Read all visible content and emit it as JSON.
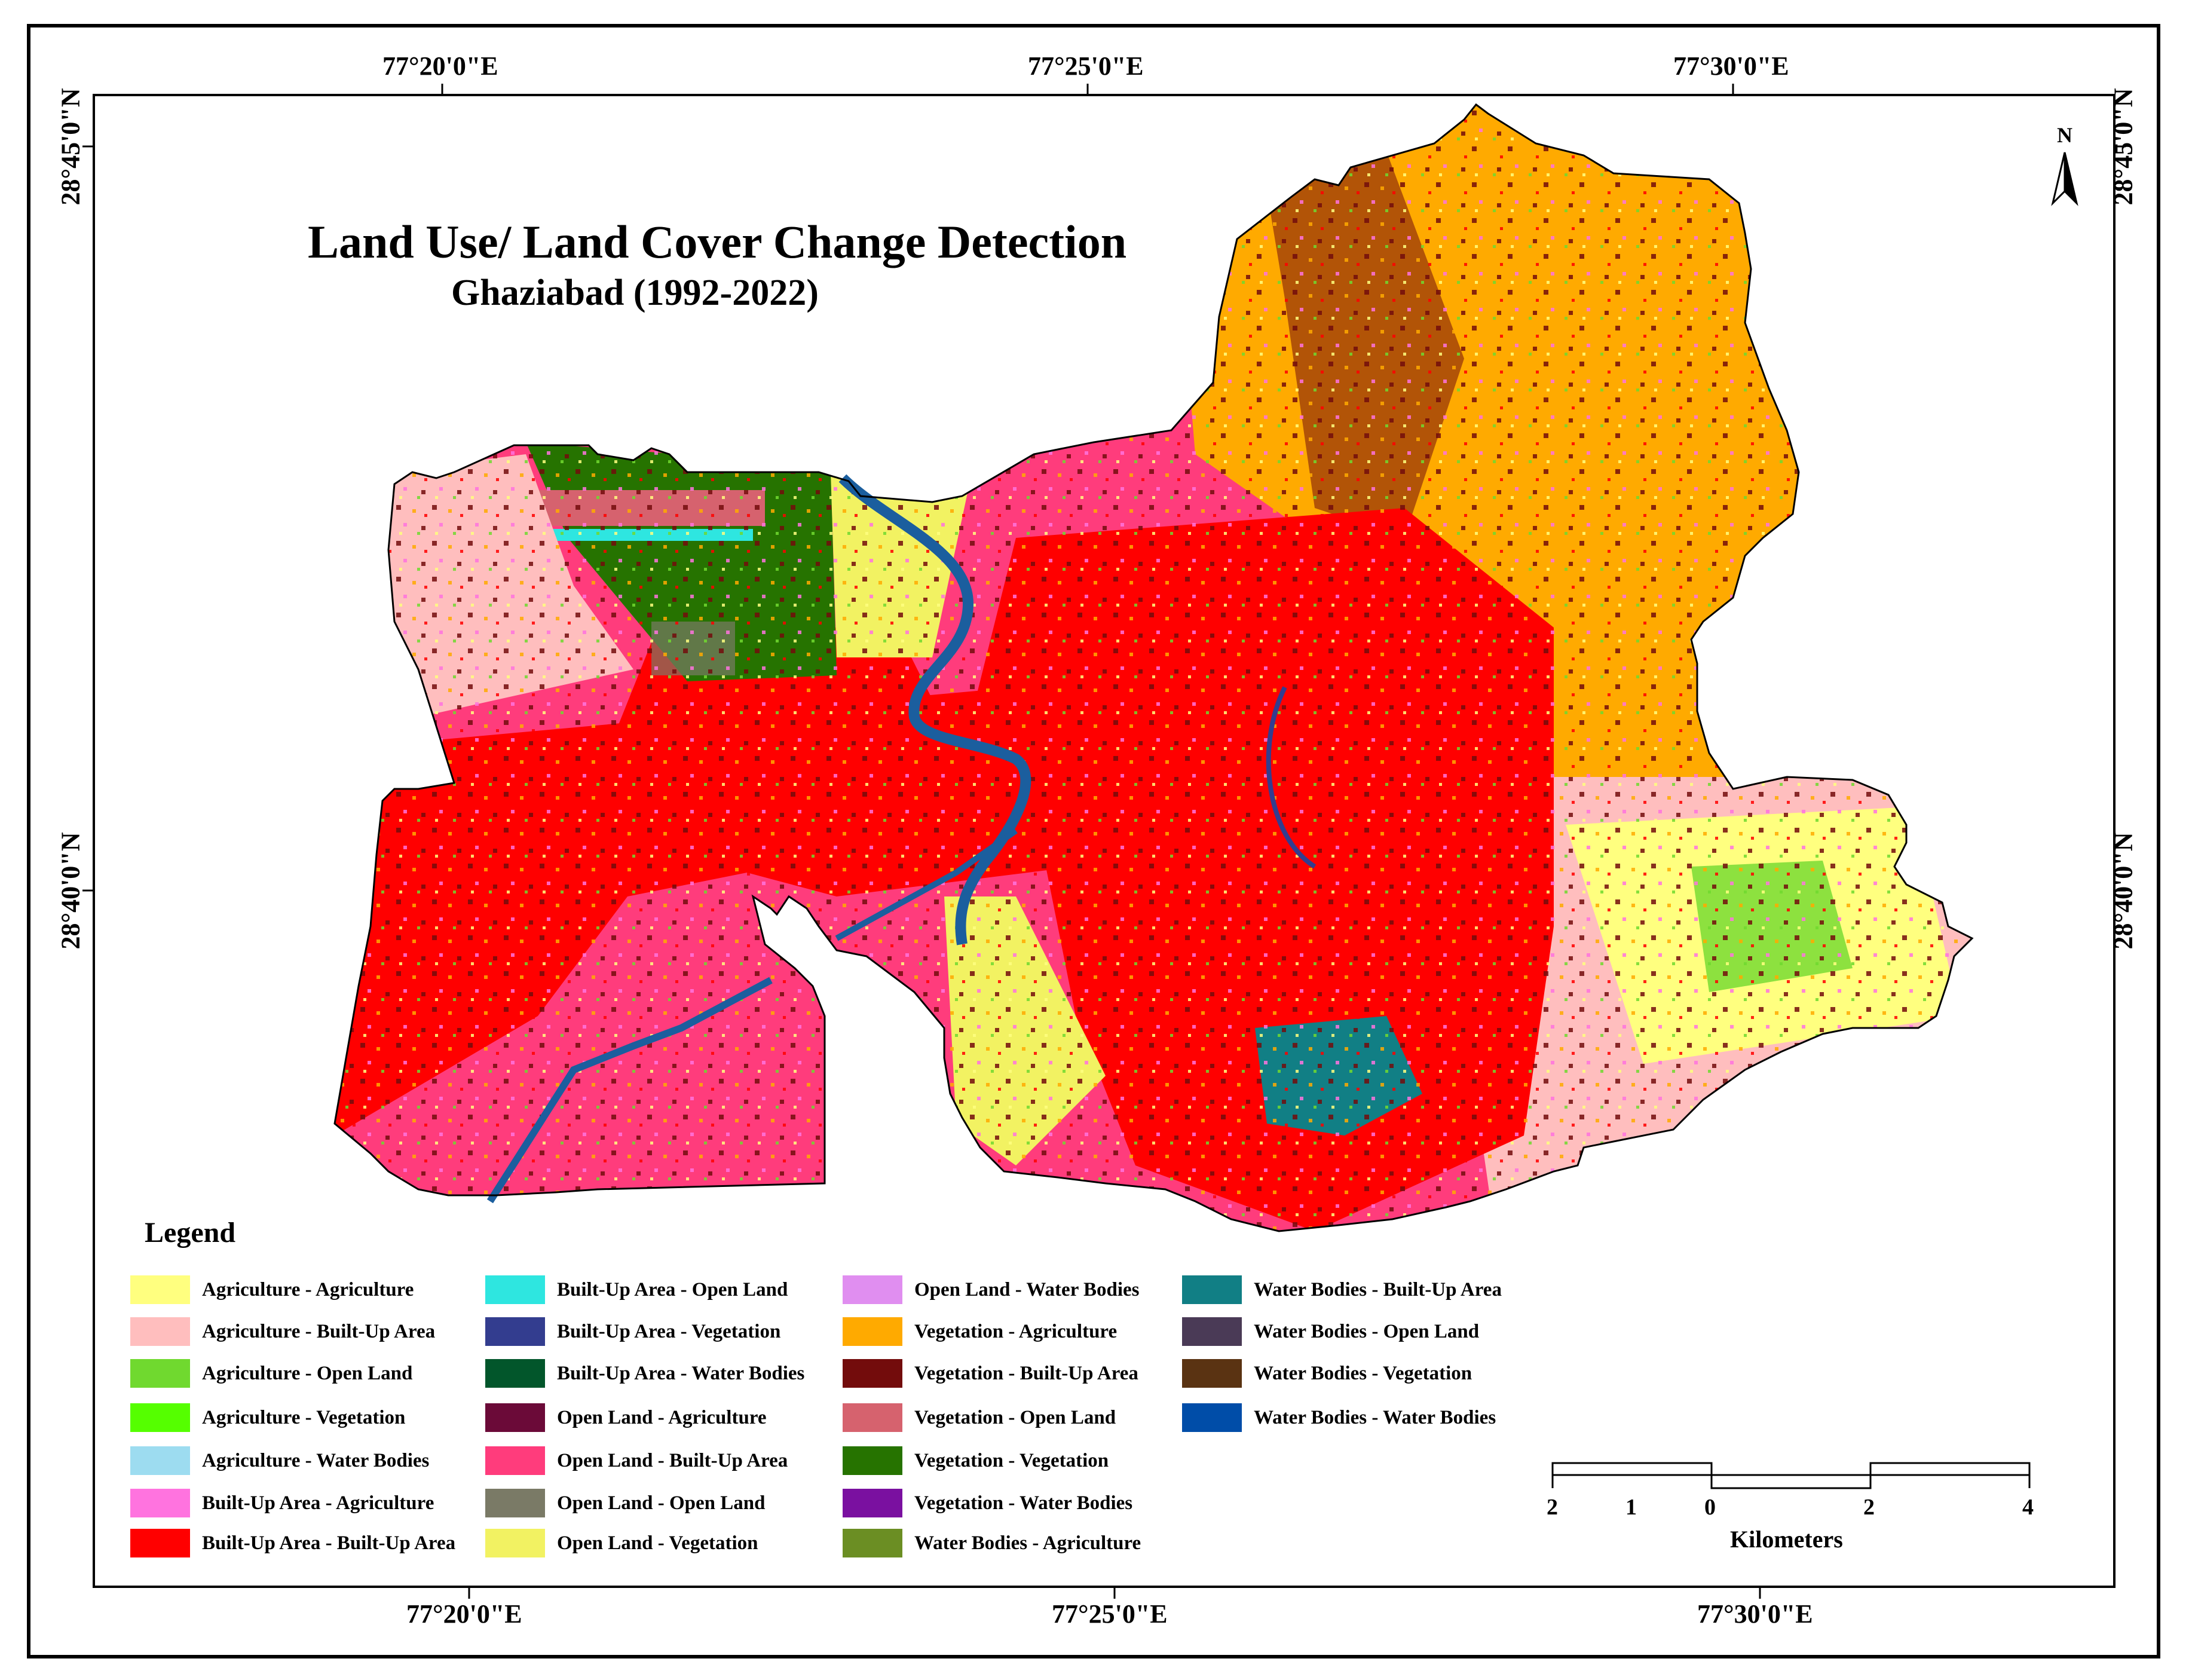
{
  "title": "Land Use/ Land Cover Change Detection",
  "subtitle": "Ghaziabad (1992-2022)",
  "north_label": "N",
  "coordinates": {
    "top": [
      "77°20'0\"E",
      "77°25'0\"E",
      "77°30'0\"E"
    ],
    "bottom": [
      "77°20'0\"E",
      "77°25'0\"E",
      "77°30'0\"E"
    ],
    "left": [
      "28°45'0\"N",
      "28°40'0\"N"
    ],
    "right": [
      "28°45'0\"N",
      "28°40'0\"N"
    ]
  },
  "legend": {
    "heading": "Legend",
    "items": [
      {
        "label": "Agriculture - Agriculture",
        "color": "#ffff7f"
      },
      {
        "label": "Agriculture - Built-Up Area",
        "color": "#ffbebe"
      },
      {
        "label": "Agriculture - Open Land",
        "color": "#70d92f"
      },
      {
        "label": "Agriculture - Vegetation",
        "color": "#55ff00"
      },
      {
        "label": "Agriculture - Water Bodies",
        "color": "#9ddcf0"
      },
      {
        "label": "Built-Up Area - Agriculture",
        "color": "#ff73df"
      },
      {
        "label": "Built-Up Area - Built-Up Area",
        "color": "#ff0000"
      },
      {
        "label": "Built-Up Area - Open Land",
        "color": "#2ee6e0"
      },
      {
        "label": "Built-Up Area - Vegetation",
        "color": "#333d8f"
      },
      {
        "label": "Built-Up Area - Water Bodies",
        "color": "#02562b"
      },
      {
        "label": "Open Land - Agriculture",
        "color": "#6b0a38"
      },
      {
        "label": "Open Land - Built-Up Area",
        "color": "#ff3c7c"
      },
      {
        "label": "Open Land - Open Land",
        "color": "#7a7a66"
      },
      {
        "label": "Open Land - Vegetation",
        "color": "#f2f262"
      },
      {
        "label": "Open Land - Water Bodies",
        "color": "#e08ef0"
      },
      {
        "label": "Vegetation - Agriculture",
        "color": "#ffaa00"
      },
      {
        "label": "Vegetation - Built-Up Area",
        "color": "#730c0c"
      },
      {
        "label": "Vegetation - Open Land",
        "color": "#d6626e"
      },
      {
        "label": "Vegetation - Vegetation",
        "color": "#267300"
      },
      {
        "label": "Vegetation - Water Bodies",
        "color": "#7a10a0"
      },
      {
        "label": "Water Bodies - Agriculture",
        "color": "#6b8e23"
      },
      {
        "label": "Water Bodies - Built-Up Area",
        "color": "#117f85"
      },
      {
        "label": "Water Bodies - Open Land",
        "color": "#4a3a56"
      },
      {
        "label": "Water Bodies - Vegetation",
        "color": "#5a3312"
      },
      {
        "label": "Water Bodies - Water Bodies",
        "color": "#004da8"
      }
    ]
  },
  "scale_bar": {
    "ticks": [
      "2",
      "1",
      "0",
      "2",
      "4"
    ],
    "units": "Kilometers"
  }
}
